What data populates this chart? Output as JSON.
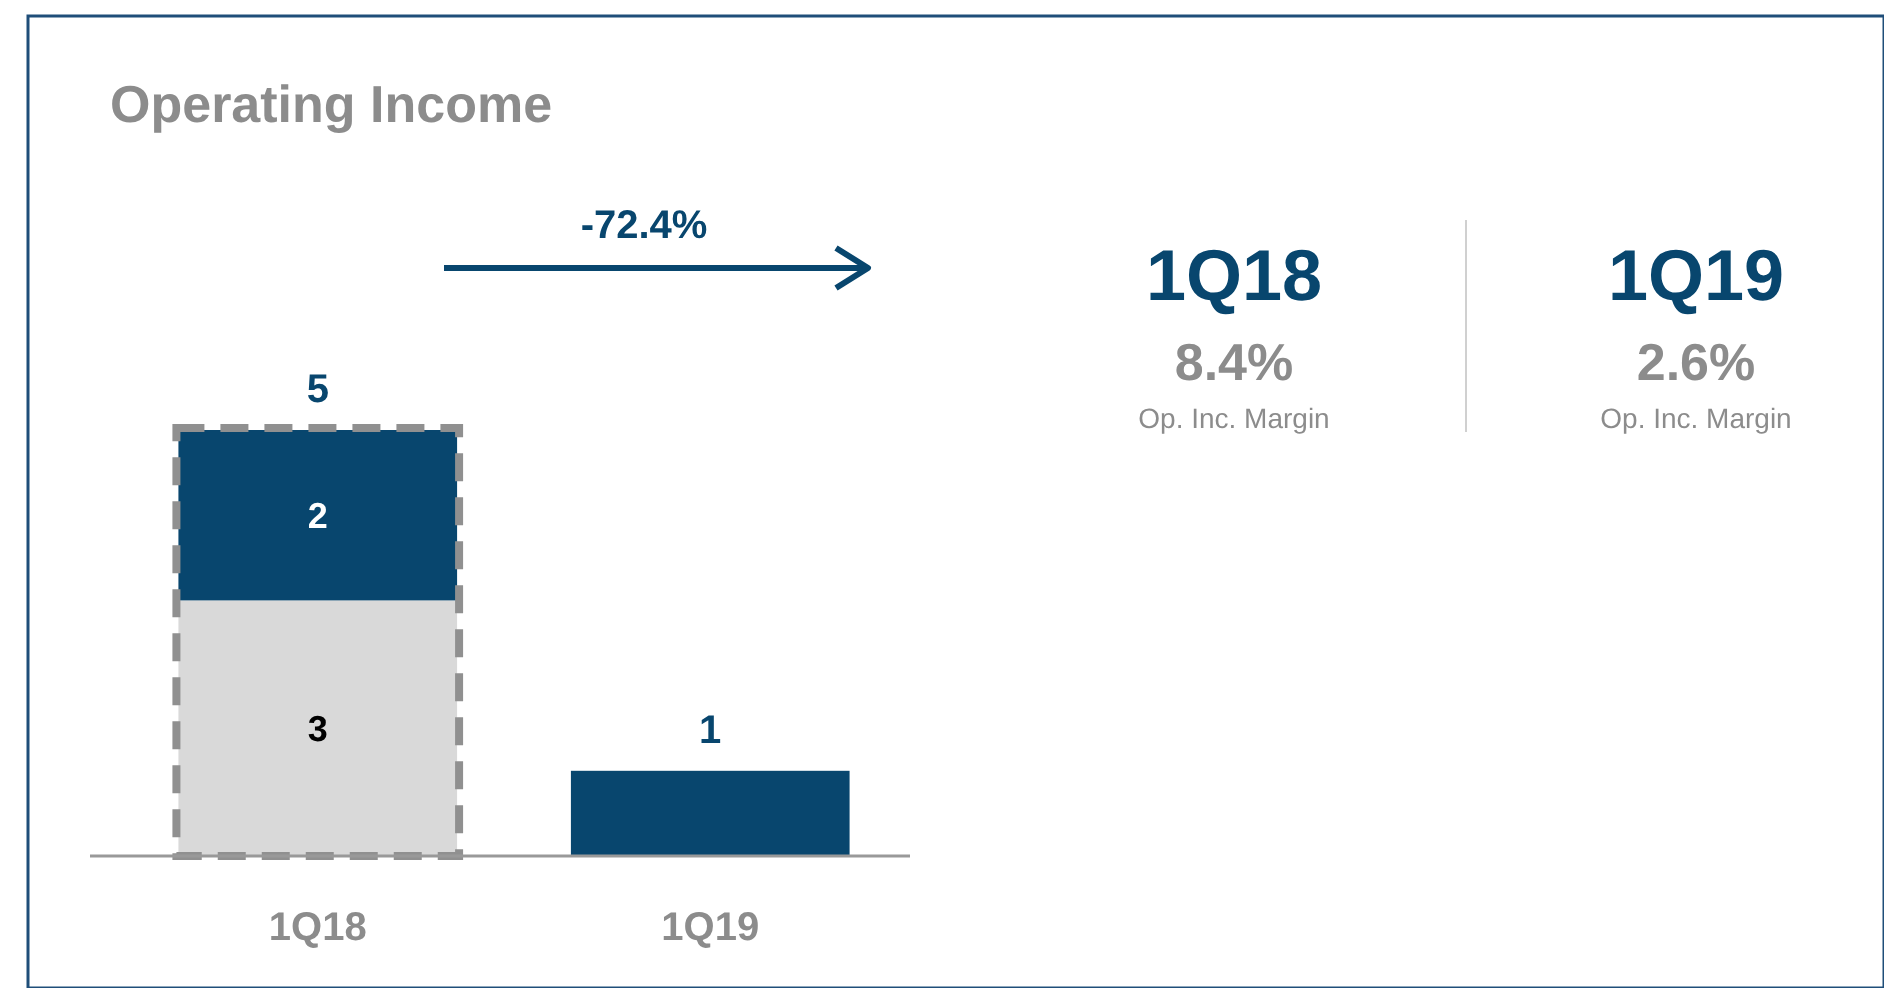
{
  "chart_data": {
    "type": "bar",
    "title": "Operating Income",
    "categories": [
      "1Q18",
      "1Q19"
    ],
    "stacked": true,
    "series": [
      {
        "color": "#d9d9d9",
        "values": [
          3,
          null
        ],
        "value_labels": [
          "3",
          null
        ]
      },
      {
        "color": "#08466e",
        "values": [
          2,
          1
        ],
        "value_labels": [
          "2",
          null
        ]
      }
    ],
    "totals": [
      "5",
      "1"
    ],
    "annotations": [
      "-72.4%",
      "1Q18",
      "8.4%",
      "Op. Inc. Margin",
      "1Q19",
      "2.6%",
      "Op. Inc. Margin"
    ]
  }
}
